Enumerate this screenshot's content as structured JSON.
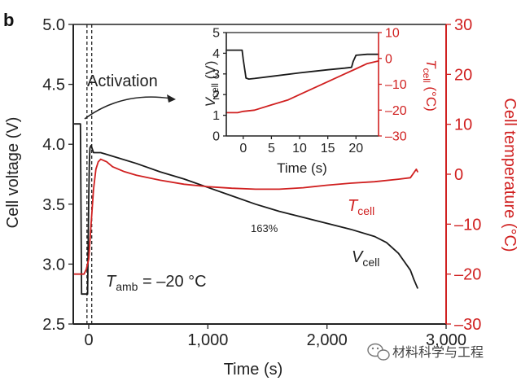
{
  "panel_letter": "b",
  "overlay_text": "163%",
  "watermark": {
    "text": "材料科学与工程",
    "icon": "wechat-icon"
  },
  "colors": {
    "voltage": "#1a1a1a",
    "temperature": "#d02020"
  },
  "chart_data": [
    {
      "type": "line",
      "xlabel": "Time (s)",
      "ylabel": "Cell voltage (V)",
      "y2label": "Cell temperature (°C)",
      "xlim": [
        -130,
        3000
      ],
      "ylim": [
        2.5,
        5.0
      ],
      "y2lim": [
        -30,
        30
      ],
      "xticks": [
        0,
        1000,
        2000,
        3000
      ],
      "xtick_labels": [
        "0",
        "1,000",
        "2,000",
        "3,000"
      ],
      "yticks": [
        2.5,
        3.0,
        3.5,
        4.0,
        4.5,
        5.0
      ],
      "ytick_labels": [
        "2.5",
        "3.0",
        "3.5",
        "4.0",
        "4.5",
        "5.0"
      ],
      "y2ticks": [
        -30,
        -20,
        -10,
        0,
        10,
        20,
        30
      ],
      "y2tick_labels": [
        "–30",
        "–20",
        "–10",
        "0",
        "10",
        "20",
        "30"
      ],
      "dashed_lines_x": [
        -15,
        25
      ],
      "annotations": {
        "activation": "Activation",
        "tamb_main": "T",
        "tamb_sub": "amb",
        "tamb_value": " = –20 °C",
        "vcell_main": "V",
        "vcell_sub": "cell",
        "tcell_main": "T",
        "tcell_sub": "cell"
      },
      "series": [
        {
          "name": "Vcell",
          "axis": "left",
          "x": [
            -120,
            -90,
            -80,
            -70,
            -60,
            -40,
            -30,
            -20,
            -10,
            0,
            5,
            10,
            20,
            30,
            40,
            60,
            100,
            200,
            400,
            600,
            800,
            1000,
            1200,
            1400,
            1600,
            1800,
            2000,
            2200,
            2400,
            2500,
            2600,
            2650,
            2700,
            2730,
            2760
          ],
          "y": [
            4.17,
            4.17,
            4.17,
            4.17,
            2.75,
            2.75,
            2.75,
            2.75,
            2.75,
            3.55,
            3.85,
            3.97,
            3.99,
            3.96,
            3.93,
            3.93,
            3.93,
            3.9,
            3.84,
            3.77,
            3.71,
            3.64,
            3.57,
            3.5,
            3.44,
            3.39,
            3.34,
            3.29,
            3.23,
            3.18,
            3.09,
            3.02,
            2.95,
            2.87,
            2.8
          ]
        },
        {
          "name": "Tcell",
          "axis": "right",
          "x": [
            -120,
            -100,
            -80,
            -60,
            -40,
            -20,
            0,
            20,
            40,
            60,
            80,
            100,
            150,
            200,
            300,
            400,
            600,
            800,
            1000,
            1200,
            1400,
            1600,
            1800,
            2000,
            2200,
            2400,
            2600,
            2700,
            2750,
            2760
          ],
          "y": [
            -20,
            -20,
            -20,
            -20,
            -20,
            -19,
            -17,
            -10,
            -3,
            1,
            2.5,
            3,
            2.5,
            1.5,
            0.5,
            -0.2,
            -1.2,
            -2,
            -2.5,
            -2.8,
            -3,
            -3,
            -2.7,
            -2.2,
            -1.8,
            -1.5,
            -1,
            -0.7,
            1,
            0.5
          ]
        }
      ]
    },
    {
      "type": "line",
      "xlabel": "Time (s)",
      "ylabel_main": "V",
      "ylabel_sub": "cell",
      "ylabel_unit": " (V)",
      "y2label_main": "T",
      "y2label_sub": "cell",
      "y2label_unit": " (°C)",
      "xlim": [
        -3,
        24
      ],
      "ylim": [
        0,
        5
      ],
      "y2lim": [
        -30,
        10
      ],
      "xticks": [
        0,
        5,
        10,
        15,
        20
      ],
      "xtick_labels": [
        "0",
        "5",
        "10",
        "15",
        "20"
      ],
      "yticks": [
        0,
        1,
        2,
        3,
        4,
        5
      ],
      "ytick_labels": [
        "0",
        "1",
        "2",
        "3",
        "4",
        "5"
      ],
      "y2ticks": [
        -30,
        -20,
        -10,
        0,
        10
      ],
      "y2tick_labels": [
        "–30",
        "–20",
        "–10",
        "0",
        "10"
      ],
      "dashed_lines_x": [],
      "annotations": {},
      "series": [
        {
          "name": "Vcell",
          "axis": "left",
          "x": [
            -3,
            -0.2,
            0,
            0.5,
            1,
            2,
            5,
            10,
            15,
            18,
            19.2,
            19.5,
            20,
            22,
            24
          ],
          "y": [
            4.15,
            4.15,
            3.7,
            2.8,
            2.75,
            2.78,
            2.88,
            3.05,
            3.2,
            3.28,
            3.32,
            3.6,
            3.9,
            3.95,
            3.95
          ]
        },
        {
          "name": "Tcell",
          "axis": "right",
          "x": [
            -3,
            -1,
            0,
            2,
            5,
            8,
            10,
            12,
            15,
            18,
            20,
            22,
            24
          ],
          "y": [
            -21,
            -21,
            -20.5,
            -20,
            -18,
            -16,
            -14,
            -12,
            -9,
            -6,
            -4,
            -2,
            -1
          ]
        }
      ]
    }
  ]
}
